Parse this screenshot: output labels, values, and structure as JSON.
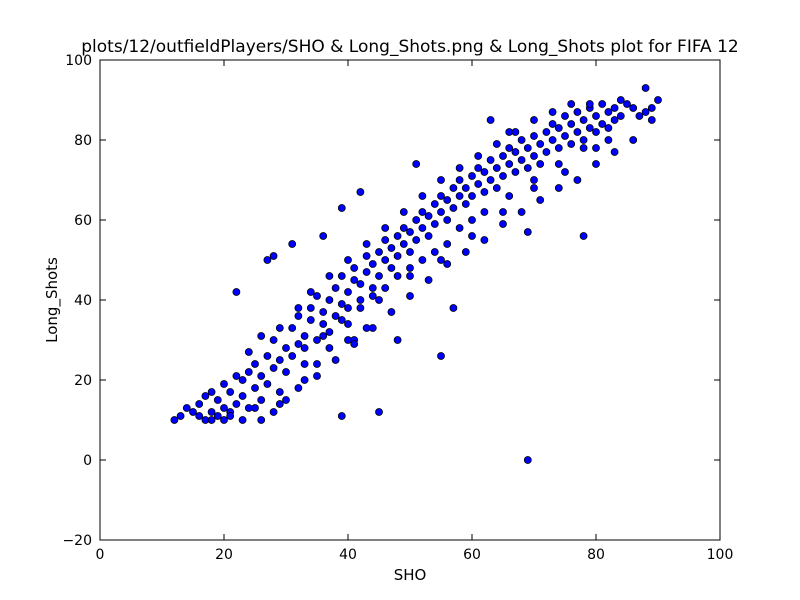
{
  "chart_data": {
    "type": "scatter",
    "title": "plots/12/outfieldPlayers/SHO & Long_Shots.png & Long_Shots plot for FIFA 12",
    "xlabel": "SHO",
    "ylabel": "Long_Shots",
    "xlim": [
      0,
      100
    ],
    "ylim": [
      -20,
      100
    ],
    "xticks": [
      0,
      20,
      40,
      60,
      80,
      100
    ],
    "yticks": [
      -20,
      0,
      20,
      40,
      60,
      80,
      100
    ],
    "grid": false,
    "legend": "none",
    "marker_color": "#0000ff",
    "marker_edge_color": "#000000",
    "series": [
      {
        "points": [
          [
            12,
            10
          ],
          [
            13,
            11
          ],
          [
            14,
            13
          ],
          [
            15,
            12
          ],
          [
            16,
            14
          ],
          [
            16,
            11
          ],
          [
            17,
            10
          ],
          [
            17,
            16
          ],
          [
            18,
            12
          ],
          [
            18,
            17
          ],
          [
            19,
            11
          ],
          [
            19,
            15
          ],
          [
            20,
            13
          ],
          [
            20,
            19
          ],
          [
            21,
            17
          ],
          [
            21,
            12
          ],
          [
            22,
            21
          ],
          [
            22,
            14
          ],
          [
            23,
            16
          ],
          [
            23,
            20
          ],
          [
            24,
            22
          ],
          [
            24,
            13
          ],
          [
            25,
            18
          ],
          [
            25,
            24
          ],
          [
            26,
            15
          ],
          [
            26,
            21
          ],
          [
            27,
            26
          ],
          [
            27,
            19
          ],
          [
            28,
            23
          ],
          [
            28,
            30
          ],
          [
            29,
            17
          ],
          [
            29,
            25
          ],
          [
            30,
            28
          ],
          [
            30,
            22
          ],
          [
            31,
            33
          ],
          [
            31,
            26
          ],
          [
            32,
            29
          ],
          [
            32,
            36
          ],
          [
            33,
            24
          ],
          [
            33,
            31
          ],
          [
            34,
            35
          ],
          [
            34,
            38
          ],
          [
            35,
            30
          ],
          [
            35,
            41
          ],
          [
            36,
            34
          ],
          [
            36,
            37
          ],
          [
            37,
            32
          ],
          [
            37,
            40
          ],
          [
            38,
            43
          ],
          [
            38,
            36
          ],
          [
            39,
            39
          ],
          [
            39,
            46
          ],
          [
            40,
            42
          ],
          [
            40,
            34
          ],
          [
            41,
            45
          ],
          [
            41,
            48
          ],
          [
            42,
            40
          ],
          [
            42,
            44
          ],
          [
            43,
            47
          ],
          [
            43,
            51
          ],
          [
            44,
            43
          ],
          [
            44,
            49
          ],
          [
            45,
            52
          ],
          [
            45,
            46
          ],
          [
            46,
            50
          ],
          [
            46,
            55
          ],
          [
            47,
            48
          ],
          [
            47,
            53
          ],
          [
            48,
            56
          ],
          [
            48,
            51
          ],
          [
            49,
            54
          ],
          [
            49,
            58
          ],
          [
            50,
            52
          ],
          [
            50,
            57
          ],
          [
            51,
            60
          ],
          [
            51,
            55
          ],
          [
            52,
            58
          ],
          [
            52,
            62
          ],
          [
            53,
            56
          ],
          [
            53,
            61
          ],
          [
            54,
            64
          ],
          [
            54,
            59
          ],
          [
            55,
            62
          ],
          [
            55,
            66
          ],
          [
            56,
            60
          ],
          [
            56,
            65
          ],
          [
            57,
            68
          ],
          [
            57,
            63
          ],
          [
            58,
            66
          ],
          [
            58,
            70
          ],
          [
            59,
            64
          ],
          [
            59,
            68
          ],
          [
            60,
            71
          ],
          [
            60,
            66
          ],
          [
            61,
            69
          ],
          [
            61,
            73
          ],
          [
            62,
            67
          ],
          [
            62,
            72
          ],
          [
            63,
            75
          ],
          [
            63,
            70
          ],
          [
            64,
            73
          ],
          [
            64,
            68
          ],
          [
            65,
            76
          ],
          [
            65,
            71
          ],
          [
            66,
            74
          ],
          [
            66,
            78
          ],
          [
            67,
            72
          ],
          [
            67,
            77
          ],
          [
            68,
            80
          ],
          [
            68,
            75
          ],
          [
            69,
            78
          ],
          [
            69,
            73
          ],
          [
            70,
            81
          ],
          [
            70,
            76
          ],
          [
            71,
            79
          ],
          [
            71,
            74
          ],
          [
            72,
            82
          ],
          [
            72,
            77
          ],
          [
            73,
            80
          ],
          [
            73,
            84
          ],
          [
            74,
            78
          ],
          [
            74,
            83
          ],
          [
            75,
            86
          ],
          [
            75,
            81
          ],
          [
            76,
            84
          ],
          [
            76,
            79
          ],
          [
            77,
            87
          ],
          [
            77,
            82
          ],
          [
            78,
            85
          ],
          [
            78,
            80
          ],
          [
            79,
            88
          ],
          [
            79,
            83
          ],
          [
            80,
            86
          ],
          [
            80,
            82
          ],
          [
            81,
            89
          ],
          [
            81,
            84
          ],
          [
            82,
            87
          ],
          [
            82,
            83
          ],
          [
            83,
            88
          ],
          [
            83,
            85
          ],
          [
            84,
            90
          ],
          [
            84,
            86
          ],
          [
            85,
            89
          ],
          [
            86,
            88
          ],
          [
            87,
            86
          ],
          [
            88,
            93
          ],
          [
            88,
            87
          ],
          [
            89,
            85
          ],
          [
            90,
            90
          ],
          [
            89,
            88
          ],
          [
            69,
            0
          ],
          [
            45,
            12
          ],
          [
            39,
            11
          ],
          [
            22,
            42
          ],
          [
            27,
            50
          ],
          [
            28,
            51
          ],
          [
            31,
            54
          ],
          [
            36,
            56
          ],
          [
            39,
            63
          ],
          [
            42,
            67
          ],
          [
            51,
            74
          ],
          [
            63,
            85
          ],
          [
            66,
            82
          ],
          [
            78,
            56
          ],
          [
            69,
            57
          ],
          [
            57,
            38
          ],
          [
            55,
            26
          ],
          [
            48,
            30
          ],
          [
            43,
            33
          ],
          [
            41,
            30
          ],
          [
            35,
            24
          ],
          [
            33,
            20
          ],
          [
            30,
            15
          ],
          [
            25,
            13
          ],
          [
            20,
            10
          ],
          [
            23,
            10
          ],
          [
            26,
            10
          ],
          [
            28,
            12
          ],
          [
            21,
            11
          ],
          [
            18,
            10
          ],
          [
            24,
            27
          ],
          [
            26,
            31
          ],
          [
            29,
            33
          ],
          [
            32,
            38
          ],
          [
            34,
            42
          ],
          [
            37,
            46
          ],
          [
            40,
            50
          ],
          [
            43,
            54
          ],
          [
            46,
            58
          ],
          [
            49,
            62
          ],
          [
            52,
            66
          ],
          [
            55,
            70
          ],
          [
            58,
            73
          ],
          [
            61,
            76
          ],
          [
            64,
            79
          ],
          [
            67,
            82
          ],
          [
            70,
            85
          ],
          [
            73,
            87
          ],
          [
            76,
            89
          ],
          [
            79,
            89
          ],
          [
            29,
            14
          ],
          [
            32,
            18
          ],
          [
            35,
            21
          ],
          [
            38,
            25
          ],
          [
            41,
            29
          ],
          [
            44,
            33
          ],
          [
            47,
            37
          ],
          [
            50,
            41
          ],
          [
            53,
            45
          ],
          [
            56,
            49
          ],
          [
            59,
            52
          ],
          [
            62,
            55
          ],
          [
            65,
            59
          ],
          [
            68,
            62
          ],
          [
            71,
            65
          ],
          [
            74,
            68
          ],
          [
            77,
            70
          ],
          [
            80,
            74
          ],
          [
            83,
            77
          ],
          [
            86,
            80
          ],
          [
            37,
            28
          ],
          [
            40,
            30
          ],
          [
            45,
            40
          ],
          [
            50,
            46
          ],
          [
            55,
            50
          ],
          [
            60,
            56
          ],
          [
            65,
            62
          ],
          [
            70,
            68
          ],
          [
            75,
            72
          ],
          [
            80,
            78
          ],
          [
            33,
            28
          ],
          [
            36,
            31
          ],
          [
            39,
            35
          ],
          [
            42,
            38
          ],
          [
            46,
            43
          ],
          [
            50,
            48
          ],
          [
            54,
            52
          ],
          [
            58,
            58
          ],
          [
            62,
            62
          ],
          [
            66,
            66
          ],
          [
            70,
            70
          ],
          [
            74,
            74
          ],
          [
            78,
            78
          ],
          [
            82,
            80
          ],
          [
            60,
            60
          ],
          [
            56,
            54
          ],
          [
            52,
            50
          ],
          [
            48,
            46
          ],
          [
            44,
            41
          ],
          [
            40,
            38
          ]
        ]
      }
    ]
  }
}
